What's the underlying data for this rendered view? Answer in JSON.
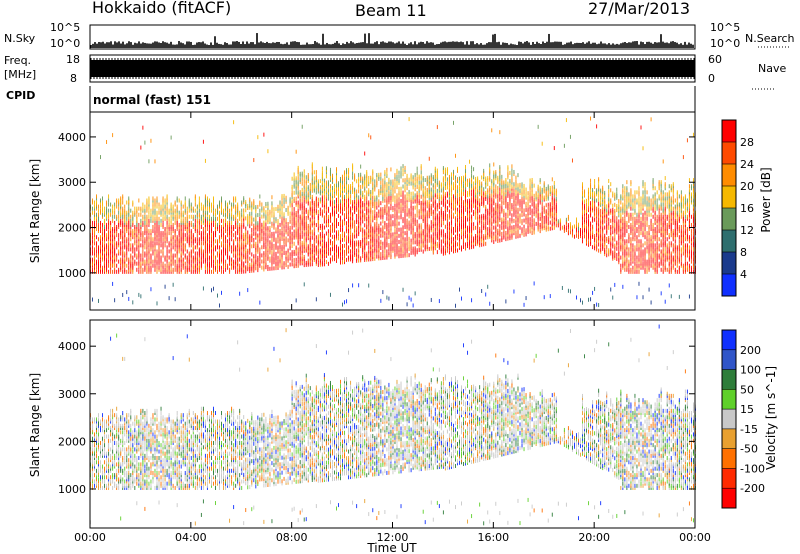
{
  "header": {
    "station": "Hokkaido (fitACF)",
    "beam": "Beam 11",
    "date": "27/Mar/2013"
  },
  "panels": {
    "nsky_label": "N.Sky",
    "nsky_ticks": [
      "10^5",
      "10^0"
    ],
    "nsearch_label": "N.Search",
    "nsearch_ticks": [
      "10^5",
      "10^0"
    ],
    "freq_label_1": "Freq.",
    "freq_label_2": "[MHz]",
    "freq_ticks": [
      "18",
      "8"
    ],
    "nave_label": "Nave",
    "nave_ticks": [
      "60",
      "0"
    ],
    "cpid_label": "CPID",
    "cpid_text": "normal (fast) 151"
  },
  "chart_data": [
    {
      "type": "heatmap",
      "name": "power",
      "ylabel": "Slant Range [km]",
      "xlabel": "Time UT",
      "yticks": [
        1000,
        2000,
        3000,
        4000
      ],
      "ylim": [
        180,
        4550
      ],
      "xticks": [
        "00:00",
        "04:00",
        "08:00",
        "12:00",
        "16:00",
        "20:00",
        "00:00"
      ],
      "xlim_hours": [
        0,
        24
      ],
      "colorbar_label": "Power [dB]",
      "colorbar_ticks": [
        "28",
        "24",
        "20",
        "16",
        "12",
        "8",
        "4"
      ],
      "colorbar_colors": [
        "#ff0000",
        "#ff4a00",
        "#ff8c00",
        "#f5b800",
        "#6a9a5a",
        "#2e6e6e",
        "#1a3a8c",
        "#1030ff"
      ],
      "colorbar_range": [
        0,
        30
      ]
    },
    {
      "type": "heatmap",
      "name": "velocity",
      "ylabel": "Slant Range [km]",
      "xlabel": "Time UT",
      "yticks": [
        1000,
        2000,
        3000,
        4000
      ],
      "ylim": [
        180,
        4550
      ],
      "xticks": [
        "00:00",
        "04:00",
        "08:00",
        "12:00",
        "16:00",
        "20:00",
        "00:00"
      ],
      "xlim_hours": [
        0,
        24
      ],
      "colorbar_label": "Velocity [m s^-1]",
      "colorbar_ticks": [
        "200",
        "100",
        "50",
        "15",
        "-15",
        "-50",
        "-100",
        "-200"
      ],
      "colorbar_colors": [
        "#1030ff",
        "#3055c8",
        "#2e7d3a",
        "#5fd02a",
        "#c8c8c8",
        "#e8a030",
        "#ff7000",
        "#ff2a00",
        "#ff0000"
      ]
    }
  ]
}
